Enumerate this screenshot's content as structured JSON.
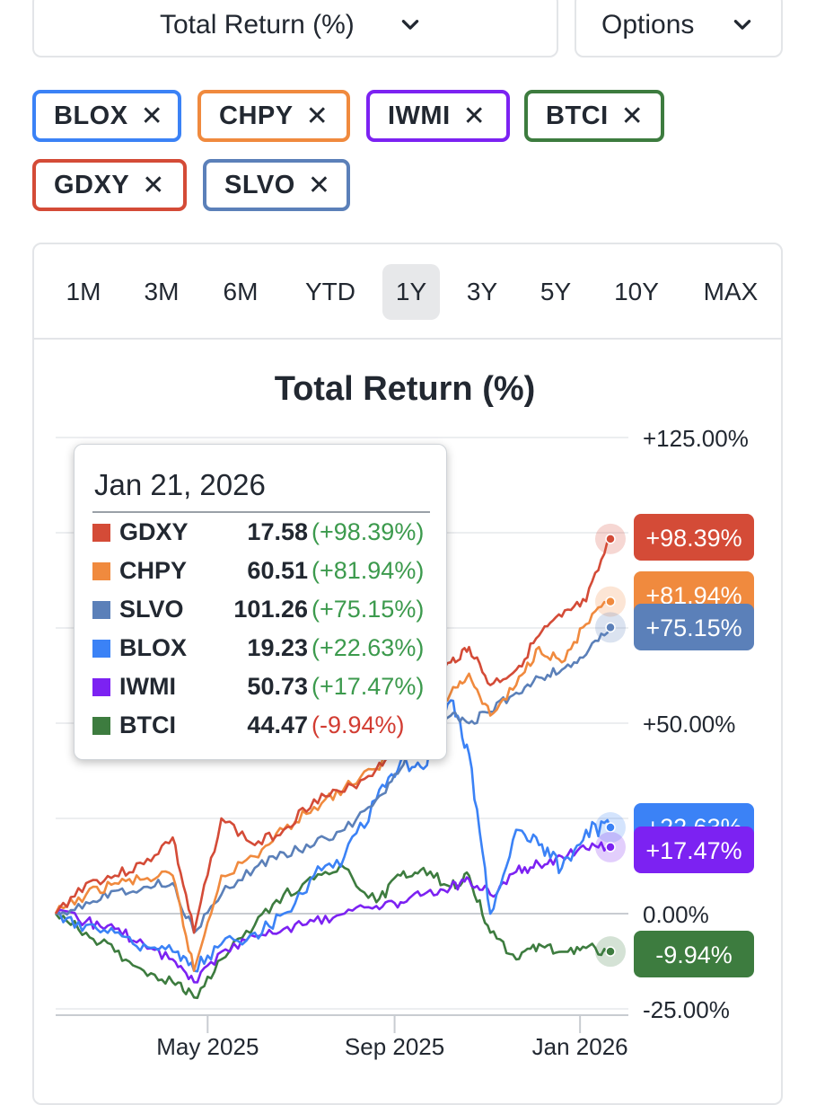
{
  "header": {
    "metric_dropdown": "Total Return (%)",
    "options_dropdown": "Options"
  },
  "chips": [
    {
      "label": "BLOX",
      "color": "#3b82f6"
    },
    {
      "label": "CHPY",
      "color": "#f08a3e"
    },
    {
      "label": "IWMI",
      "color": "#7c22f2"
    },
    {
      "label": "BTCI",
      "color": "#3d7c3f"
    },
    {
      "label": "GDXY",
      "color": "#d44b37"
    },
    {
      "label": "SLVO",
      "color": "#5b80b9"
    }
  ],
  "ranges": [
    "1M",
    "3M",
    "6M",
    "YTD",
    "1Y",
    "3Y",
    "5Y",
    "10Y",
    "MAX"
  ],
  "active_range": "1Y",
  "tooltip": {
    "date": "Jan 21, 2026",
    "rows": [
      {
        "ticker": "GDXY",
        "price": "17.58",
        "change": "(+98.39%)",
        "color": "#d44b37",
        "positive": true
      },
      {
        "ticker": "CHPY",
        "price": "60.51",
        "change": "(+81.94%)",
        "color": "#f08a3e",
        "positive": true
      },
      {
        "ticker": "SLVO",
        "price": "101.26",
        "change": "(+75.15%)",
        "color": "#5b80b9",
        "positive": true
      },
      {
        "ticker": "BLOX",
        "price": "19.23",
        "change": "(+22.63%)",
        "color": "#3b82f6",
        "positive": true
      },
      {
        "ticker": "IWMI",
        "price": "50.73",
        "change": "(+17.47%)",
        "color": "#7c22f2",
        "positive": true
      },
      {
        "ticker": "BTCI",
        "price": "44.47",
        "change": "(-9.94%)",
        "color": "#3d7c3f",
        "positive": false
      }
    ]
  },
  "chart_data": {
    "type": "line",
    "title": "Total Return (%)",
    "y_ticks": [
      "+125.00%",
      "+50.00%",
      "0.00%",
      "-25.00%"
    ],
    "y_tick_values": [
      125,
      50,
      0,
      -25
    ],
    "ylim": [
      -25,
      125
    ],
    "x_ticks": [
      "May 2025",
      "Sep 2025",
      "Jan 2026"
    ],
    "grid": true,
    "colors": {
      "positive": "#3c9a4d",
      "negative": "#d23c32"
    },
    "series": [
      {
        "name": "GDXY",
        "color": "#d44b37",
        "marker": "triangle-down",
        "end_label": "+98.39%",
        "x": [
          "2025-01-21",
          "2025-02-10",
          "2025-03-01",
          "2025-03-20",
          "2025-04-08",
          "2025-04-22",
          "2025-05-10",
          "2025-06-01",
          "2025-06-20",
          "2025-07-10",
          "2025-07-30",
          "2025-08-20",
          "2025-09-05",
          "2025-09-20",
          "2025-10-08",
          "2025-10-20",
          "2025-11-03",
          "2025-11-20",
          "2025-12-05",
          "2025-12-20",
          "2026-01-05",
          "2026-01-21"
        ],
        "y": [
          0,
          8,
          10,
          13,
          20,
          -5,
          25,
          18,
          22,
          30,
          32,
          38,
          45,
          57,
          66,
          70,
          60,
          64,
          73,
          78,
          82,
          98.39
        ]
      },
      {
        "name": "CHPY",
        "color": "#f08a3e",
        "marker": "diamond",
        "end_label": "+81.94%",
        "x": [
          "2025-01-21",
          "2025-02-10",
          "2025-03-01",
          "2025-03-20",
          "2025-04-08",
          "2025-04-22",
          "2025-05-10",
          "2025-06-01",
          "2025-06-20",
          "2025-07-10",
          "2025-07-30",
          "2025-08-20",
          "2025-09-05",
          "2025-09-20",
          "2025-10-08",
          "2025-10-20",
          "2025-11-03",
          "2025-11-20",
          "2025-12-05",
          "2025-12-20",
          "2026-01-05",
          "2026-01-21"
        ],
        "y": [
          0,
          5,
          8,
          9,
          10,
          -15,
          10,
          15,
          22,
          28,
          33,
          38,
          45,
          50,
          58,
          63,
          52,
          60,
          70,
          66,
          76,
          81.94
        ]
      },
      {
        "name": "SLVO",
        "color": "#5b80b9",
        "marker": "circle",
        "end_label": "+75.15%",
        "x": [
          "2025-01-21",
          "2025-02-10",
          "2025-03-01",
          "2025-03-20",
          "2025-04-08",
          "2025-04-22",
          "2025-05-10",
          "2025-06-01",
          "2025-06-20",
          "2025-07-10",
          "2025-07-30",
          "2025-08-20",
          "2025-09-05",
          "2025-09-20",
          "2025-10-08",
          "2025-10-20",
          "2025-11-03",
          "2025-11-20",
          "2025-12-05",
          "2025-12-20",
          "2026-01-05",
          "2026-01-21"
        ],
        "y": [
          0,
          3,
          6,
          7,
          8,
          -5,
          5,
          12,
          16,
          18,
          22,
          30,
          38,
          48,
          52,
          50,
          53,
          58,
          62,
          64,
          68,
          75.15
        ]
      },
      {
        "name": "BLOX",
        "color": "#3b82f6",
        "marker": "circle",
        "end_label": "+22.63%",
        "x": [
          "2025-01-21",
          "2025-02-10",
          "2025-03-01",
          "2025-03-20",
          "2025-04-08",
          "2025-04-22",
          "2025-05-10",
          "2025-06-01",
          "2025-06-20",
          "2025-07-10",
          "2025-07-30",
          "2025-08-20",
          "2025-09-05",
          "2025-09-20",
          "2025-10-08",
          "2025-10-20",
          "2025-11-03",
          "2025-11-20",
          "2025-12-05",
          "2025-12-20",
          "2026-01-05",
          "2026-01-21"
        ],
        "y": [
          0,
          -3,
          -5,
          -8,
          -10,
          -15,
          -8,
          -5,
          0,
          10,
          15,
          30,
          40,
          38,
          56,
          42,
          0,
          22,
          18,
          12,
          22,
          22.63
        ]
      },
      {
        "name": "IWMI",
        "color": "#7c22f2",
        "marker": "square",
        "end_label": "+17.47%",
        "x": [
          "2025-01-21",
          "2025-02-10",
          "2025-03-01",
          "2025-03-20",
          "2025-04-08",
          "2025-04-22",
          "2025-05-10",
          "2025-06-01",
          "2025-06-20",
          "2025-07-10",
          "2025-07-30",
          "2025-08-20",
          "2025-09-05",
          "2025-09-20",
          "2025-10-08",
          "2025-10-20",
          "2025-11-03",
          "2025-11-20",
          "2025-12-05",
          "2025-12-20",
          "2026-01-05",
          "2026-01-21"
        ],
        "y": [
          0,
          -2,
          -4,
          -8,
          -12,
          -18,
          -10,
          -6,
          -4,
          -2,
          0,
          2,
          3,
          5,
          7,
          9,
          5,
          11,
          13,
          15,
          17,
          17.47
        ]
      },
      {
        "name": "BTCI",
        "color": "#3d7c3f",
        "marker": "triangle",
        "end_label": "-9.94%",
        "x": [
          "2025-01-21",
          "2025-02-10",
          "2025-03-01",
          "2025-03-20",
          "2025-04-08",
          "2025-04-22",
          "2025-05-10",
          "2025-06-01",
          "2025-06-20",
          "2025-07-10",
          "2025-07-30",
          "2025-08-20",
          "2025-09-05",
          "2025-09-20",
          "2025-10-08",
          "2025-10-20",
          "2025-11-03",
          "2025-11-20",
          "2025-12-05",
          "2025-12-20",
          "2026-01-05",
          "2026-01-21"
        ],
        "y": [
          0,
          -5,
          -10,
          -15,
          -18,
          -22,
          -12,
          -3,
          5,
          9,
          12,
          3,
          10,
          12,
          7,
          10,
          -5,
          -12,
          -8,
          -10,
          -9,
          -9.94
        ]
      }
    ]
  }
}
